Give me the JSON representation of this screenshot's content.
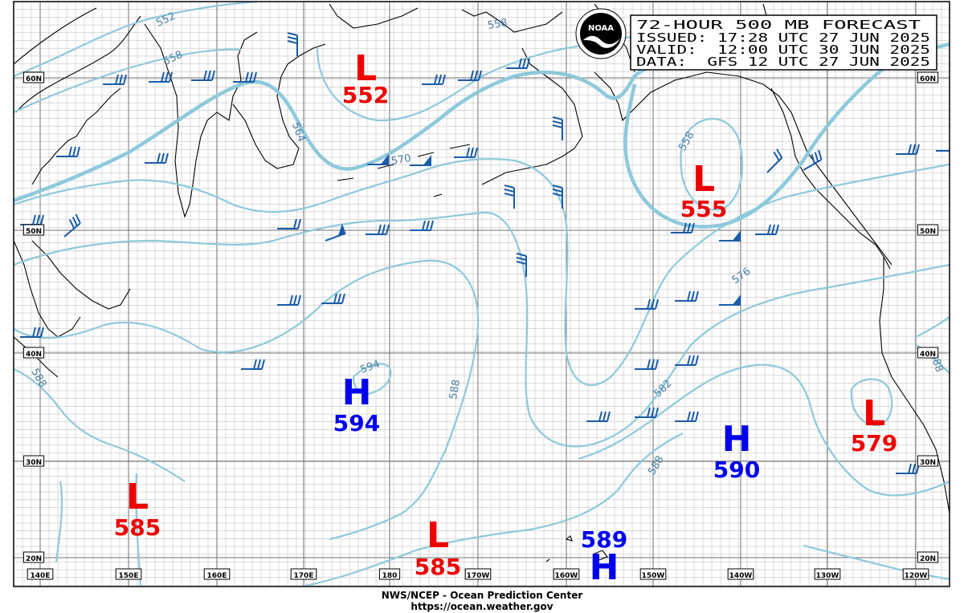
{
  "header": {
    "title": "72-HOUR 500 MB FORECAST",
    "issued": "ISSUED: 17:28 UTC 27 JUN 2025",
    "valid": "VALID:  12:00 UTC 30 JUN 2025",
    "data": "DATA:  GFS 12 UTC 27 JUN 2025"
  },
  "logo": {
    "text": "NOAA"
  },
  "footer": {
    "line1": "NWS/NCEP - Ocean Prediction Center",
    "line2": "https://ocean.weather.gov"
  },
  "lat_labels": [
    "20N",
    "30N",
    "40N",
    "50N",
    "60N"
  ],
  "lon_labels": [
    "140E",
    "150E",
    "160E",
    "170E",
    "180",
    "170W",
    "160W",
    "150W",
    "140W",
    "130W",
    "120W"
  ],
  "pressure_centers": [
    {
      "type": "L",
      "value": "552"
    },
    {
      "type": "L",
      "value": "555"
    },
    {
      "type": "H",
      "value": "594"
    },
    {
      "type": "H",
      "value": "590"
    },
    {
      "type": "L",
      "value": "579"
    },
    {
      "type": "L",
      "value": "585"
    },
    {
      "type": "L",
      "value": "585"
    },
    {
      "type": "H",
      "value": "589"
    }
  ],
  "contour_labels": [
    "552",
    "558",
    "558",
    "564",
    "570",
    "558",
    "576",
    "582",
    "588",
    "594",
    "588",
    "588",
    "588"
  ],
  "colors": {
    "low": "#ee0000",
    "high": "#0000ee",
    "contour": "#8ec9dc",
    "contour_label": "#4a7fa0",
    "wind_barb": "#1a5ca8",
    "grid_fine": "#b8b8b8",
    "grid_major": "#707070",
    "coast": "#000000"
  }
}
